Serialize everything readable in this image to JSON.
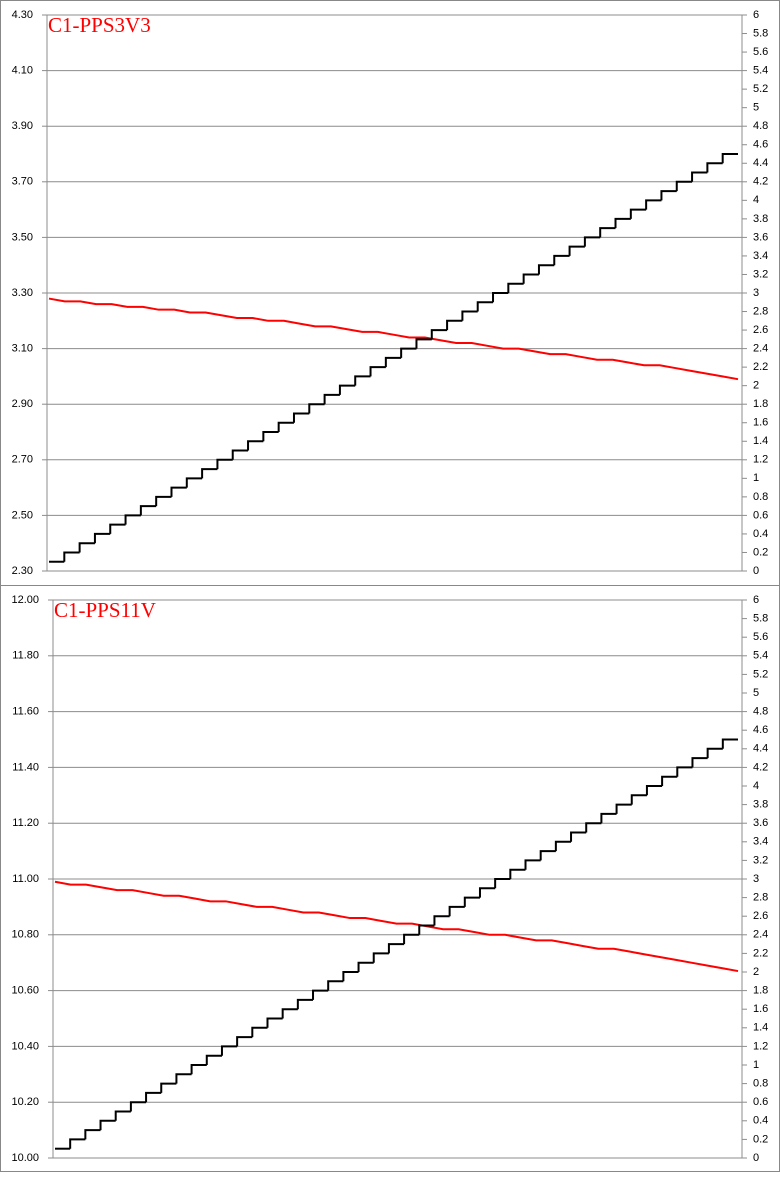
{
  "chart_data": [
    {
      "type": "line",
      "title": "C1-PPS3V3",
      "ylim": [
        2.3,
        4.3
      ],
      "yticks": [
        {
          "value": 2.3,
          "label": "2.30"
        },
        {
          "value": 2.5,
          "label": "2.50"
        },
        {
          "value": 2.7,
          "label": "2.70"
        },
        {
          "value": 2.9,
          "label": "2.90"
        },
        {
          "value": 3.1,
          "label": "3.10"
        },
        {
          "value": 3.3,
          "label": "3.30"
        },
        {
          "value": 3.5,
          "label": "3.50"
        },
        {
          "value": 3.7,
          "label": "3.70"
        },
        {
          "value": 3.9,
          "label": "3.90"
        },
        {
          "value": 4.1,
          "label": "4.10"
        },
        {
          "value": 4.3,
          "label": "4.30"
        }
      ],
      "y2lim": [
        0,
        6
      ],
      "y2ticks": [
        0,
        0.2,
        0.4,
        0.6,
        0.8,
        1,
        1.2,
        1.4,
        1.6,
        1.8,
        2,
        2.2,
        2.4,
        2.6,
        2.8,
        3,
        3.2,
        3.4,
        3.6,
        3.8,
        4,
        4.2,
        4.4,
        4.6,
        4.8,
        5,
        5.2,
        5.4,
        5.6,
        5.8,
        6
      ],
      "grid": true,
      "series": [
        {
          "color": "#ff0000",
          "values": [
            3.28,
            3.27,
            3.27,
            3.26,
            3.26,
            3.25,
            3.25,
            3.24,
            3.24,
            3.23,
            3.23,
            3.22,
            3.21,
            3.21,
            3.2,
            3.2,
            3.19,
            3.18,
            3.18,
            3.17,
            3.16,
            3.16,
            3.15,
            3.14,
            3.14,
            3.13,
            3.12,
            3.12,
            3.11,
            3.1,
            3.1,
            3.09,
            3.08,
            3.08,
            3.07,
            3.06,
            3.06,
            3.05,
            3.04,
            3.04,
            3.03,
            3.02,
            3.01,
            3.0,
            2.99
          ]
        },
        {
          "color": "#000000",
          "axis": "y2",
          "step": true,
          "values": [
            0.1,
            0.2,
            0.3,
            0.4,
            0.5,
            0.6,
            0.7,
            0.8,
            0.9,
            1.0,
            1.1,
            1.2,
            1.3,
            1.4,
            1.5,
            1.6,
            1.7,
            1.8,
            1.9,
            2.0,
            2.1,
            2.2,
            2.3,
            2.4,
            2.5,
            2.6,
            2.7,
            2.8,
            2.9,
            3.0,
            3.1,
            3.2,
            3.3,
            3.4,
            3.5,
            3.6,
            3.7,
            3.8,
            3.9,
            4.0,
            4.1,
            4.2,
            4.3,
            4.4,
            4.5
          ]
        }
      ]
    },
    {
      "type": "line",
      "title": "C1-PPS11V",
      "ylim": [
        10,
        12
      ],
      "yticks": [
        {
          "value": 10,
          "label": "10.00"
        },
        {
          "value": 10.2,
          "label": "10.20"
        },
        {
          "value": 10.4,
          "label": "10.40"
        },
        {
          "value": 10.6,
          "label": "10.60"
        },
        {
          "value": 10.8,
          "label": "10.80"
        },
        {
          "value": 11,
          "label": "11.00"
        },
        {
          "value": 11.2,
          "label": "11.20"
        },
        {
          "value": 11.4,
          "label": "11.40"
        },
        {
          "value": 11.6,
          "label": "11.60"
        },
        {
          "value": 11.8,
          "label": "11.80"
        },
        {
          "value": 12,
          "label": "12.00"
        }
      ],
      "y2lim": [
        0,
        6
      ],
      "y2ticks": [
        0,
        0.2,
        0.4,
        0.6,
        0.8,
        1,
        1.2,
        1.4,
        1.6,
        1.8,
        2,
        2.2,
        2.4,
        2.6,
        2.8,
        3,
        3.2,
        3.4,
        3.6,
        3.8,
        4,
        4.2,
        4.4,
        4.6,
        4.8,
        5,
        5.2,
        5.4,
        5.6,
        5.8,
        6
      ],
      "grid": true,
      "series": [
        {
          "color": "#ff0000",
          "values": [
            10.99,
            10.98,
            10.98,
            10.97,
            10.96,
            10.96,
            10.95,
            10.94,
            10.94,
            10.93,
            10.92,
            10.92,
            10.91,
            10.9,
            10.9,
            10.89,
            10.88,
            10.88,
            10.87,
            10.86,
            10.86,
            10.85,
            10.84,
            10.84,
            10.83,
            10.82,
            10.82,
            10.81,
            10.8,
            10.8,
            10.79,
            10.78,
            10.78,
            10.77,
            10.76,
            10.75,
            10.75,
            10.74,
            10.73,
            10.72,
            10.71,
            10.7,
            10.69,
            10.68,
            10.67
          ]
        },
        {
          "color": "#000000",
          "axis": "y2",
          "step": true,
          "values": [
            0.1,
            0.2,
            0.3,
            0.4,
            0.5,
            0.6,
            0.7,
            0.8,
            0.9,
            1.0,
            1.1,
            1.2,
            1.3,
            1.4,
            1.5,
            1.6,
            1.7,
            1.8,
            1.9,
            2.0,
            2.1,
            2.2,
            2.3,
            2.4,
            2.5,
            2.6,
            2.7,
            2.8,
            2.9,
            3.0,
            3.1,
            3.2,
            3.3,
            3.4,
            3.5,
            3.6,
            3.7,
            3.8,
            3.9,
            4.0,
            4.1,
            4.2,
            4.3,
            4.4,
            4.5
          ]
        }
      ]
    }
  ]
}
